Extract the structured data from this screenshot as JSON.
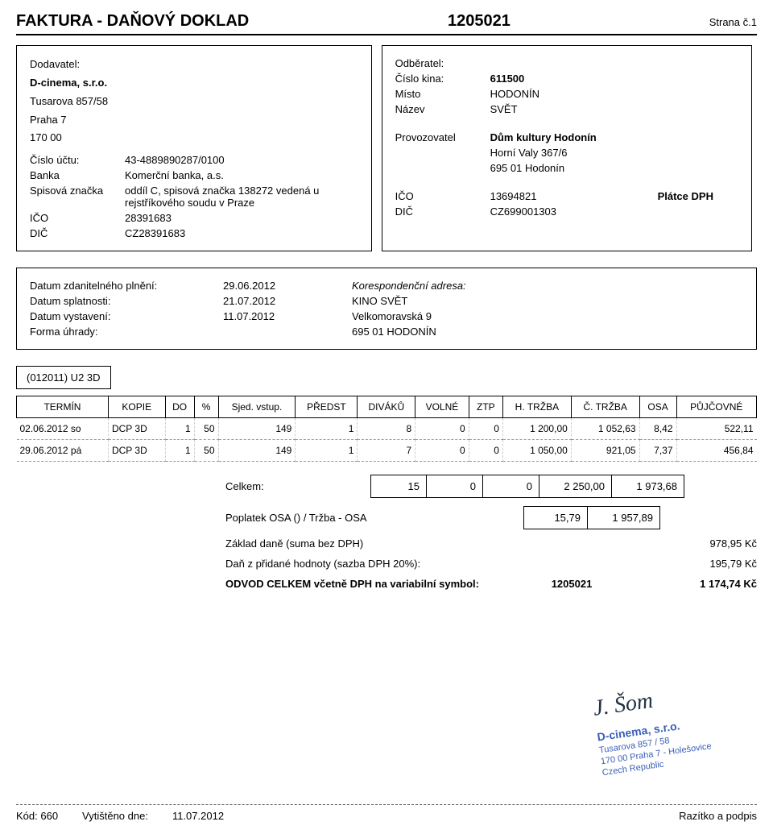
{
  "header": {
    "title": "FAKTURA - DAŇOVÝ DOKLAD",
    "number": "1205021",
    "page": "Strana č.1"
  },
  "supplier": {
    "caption": "Dodavatel:",
    "name": "D-cinema, s.r.o.",
    "addr1": "Tusarova 857/58",
    "addr2": "Praha 7",
    "zip": "170 00",
    "account_lbl": "Číslo účtu:",
    "account": "43-4889890287/0100",
    "bank_lbl": "Banka",
    "bank": "Komerční banka, a.s.",
    "file_lbl": "Spisová značka",
    "file": "oddíl C, spisová značka 138272 vedená u rejstříkového soudu v Praze",
    "ico_lbl": "IČO",
    "ico": "28391683",
    "dic_lbl": "DIČ",
    "dic": "CZ28391683"
  },
  "customer": {
    "caption": "Odběratel:",
    "kino_lbl": "Číslo kina:",
    "kino": "611500",
    "misto_lbl": "Místo",
    "misto": "HODONÍN",
    "nazev_lbl": "Název",
    "nazev": "SVĚT",
    "prov_lbl": "Provozovatel",
    "prov": "Dům kultury Hodonín",
    "addr1": "Horní Valy 367/6",
    "addr2": "695 01  Hodonín",
    "ico_lbl": "IČO",
    "ico": "13694821",
    "dic_lbl": "DIČ",
    "dic": "CZ699001303",
    "platce": "Plátce DPH"
  },
  "dates": {
    "zdan_lbl": "Datum zdanitelného plnění:",
    "zdan": "29.06.2012",
    "splat_lbl": "Datum splatnosti:",
    "splat": "21.07.2012",
    "vyst_lbl": "Datum vystavení:",
    "vyst": "11.07.2012",
    "forma_lbl": "Forma úhrady:",
    "kor_lbl": "Korespondenční adresa:",
    "kor1": "KINO SVĚT",
    "kor2": "Velkomoravská 9",
    "kor3": "695 01  HODONÍN"
  },
  "movie": "(012011) U2 3D",
  "table": {
    "headers": [
      "TERMÍN",
      "KOPIE",
      "DO",
      "%",
      "Sjed. vstup.",
      "PŘEDST",
      "DIVÁKŮ",
      "VOLNÉ",
      "ZTP",
      "H. TRŽBA",
      "Č. TRŽBA",
      "OSA",
      "PŮJČOVNÉ"
    ],
    "rows": [
      [
        "02.06.2012 so",
        "DCP 3D",
        "1",
        "50",
        "149",
        "1",
        "8",
        "0",
        "0",
        "1 200,00",
        "1 052,63",
        "8,42",
        "522,11"
      ],
      [
        "29.06.2012 pá",
        "DCP 3D",
        "1",
        "50",
        "149",
        "1",
        "7",
        "0",
        "0",
        "1 050,00",
        "921,05",
        "7,37",
        "456,84"
      ]
    ]
  },
  "summary": {
    "celkem_lbl": "Celkem:",
    "celkem": [
      "15",
      "0",
      "0",
      "2 250,00",
      "1 973,68"
    ],
    "osa_lbl": "Poplatek OSA () / Tržba - OSA",
    "osa": [
      "15,79",
      "1 957,89"
    ],
    "zaklad_lbl": "Základ daně (suma bez DPH)",
    "zaklad": "978,95 Kč",
    "dan_lbl": "Daň z přidané hodnoty (sazba DPH 20%):",
    "dan": "195,79 Kč",
    "odvod_lbl": "ODVOD CELKEM včetně DPH na variabilní symbol:",
    "odvod_num": "1205021",
    "odvod": "1 174,74 Kč"
  },
  "stamp": {
    "name": "D-cinema, s.r.o.",
    "l1": "Tusarova 857 / 58",
    "l2": "170 00 Praha 7 - Holešovice",
    "l3": "Czech Republic"
  },
  "footer": {
    "kod_lbl": "Kód: 660",
    "tisk_lbl": "Vytištěno dne:",
    "tisk": "11.07.2012",
    "sig": "Razítko a podpis"
  }
}
